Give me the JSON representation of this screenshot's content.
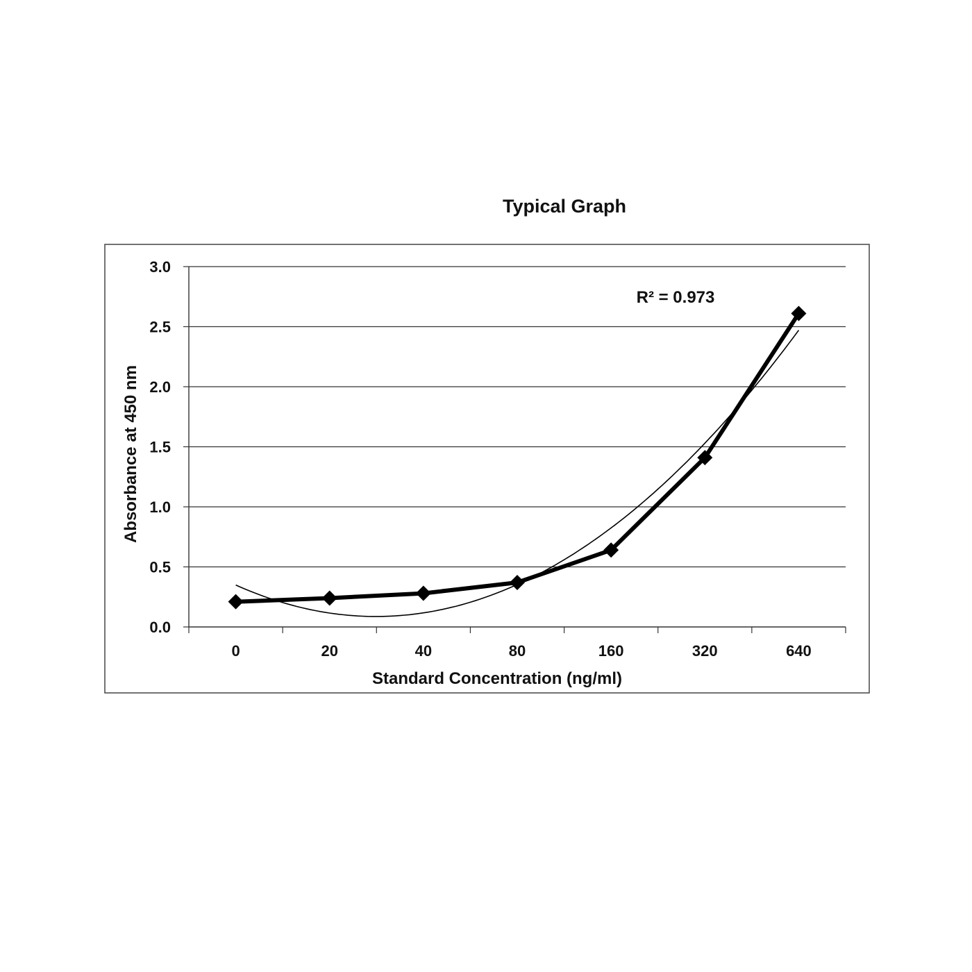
{
  "chart_data": {
    "type": "line",
    "title": "Typical Graph",
    "xlabel": "Standard  Concentration  (ng/ml)",
    "ylabel": "Absorbance at 450 nm",
    "categories": [
      "0",
      "20",
      "40",
      "80",
      "160",
      "320",
      "640"
    ],
    "series": [
      {
        "values": [
          0.21,
          0.24,
          0.28,
          0.37,
          0.64,
          1.41,
          2.61
        ]
      }
    ],
    "trendline": {
      "type": "polynomial",
      "order": 2,
      "r_squared_label": "R² = 0.973"
    },
    "ylim": [
      0,
      3.0
    ],
    "yticks": [
      "0.0",
      "0.5",
      "1.0",
      "1.5",
      "2.0",
      "2.5",
      "3.0"
    ],
    "grid": true,
    "legend": "none",
    "marker": "diamond",
    "colors": {
      "line": "#000000",
      "grid": "#333333",
      "frame": "#444444"
    }
  }
}
